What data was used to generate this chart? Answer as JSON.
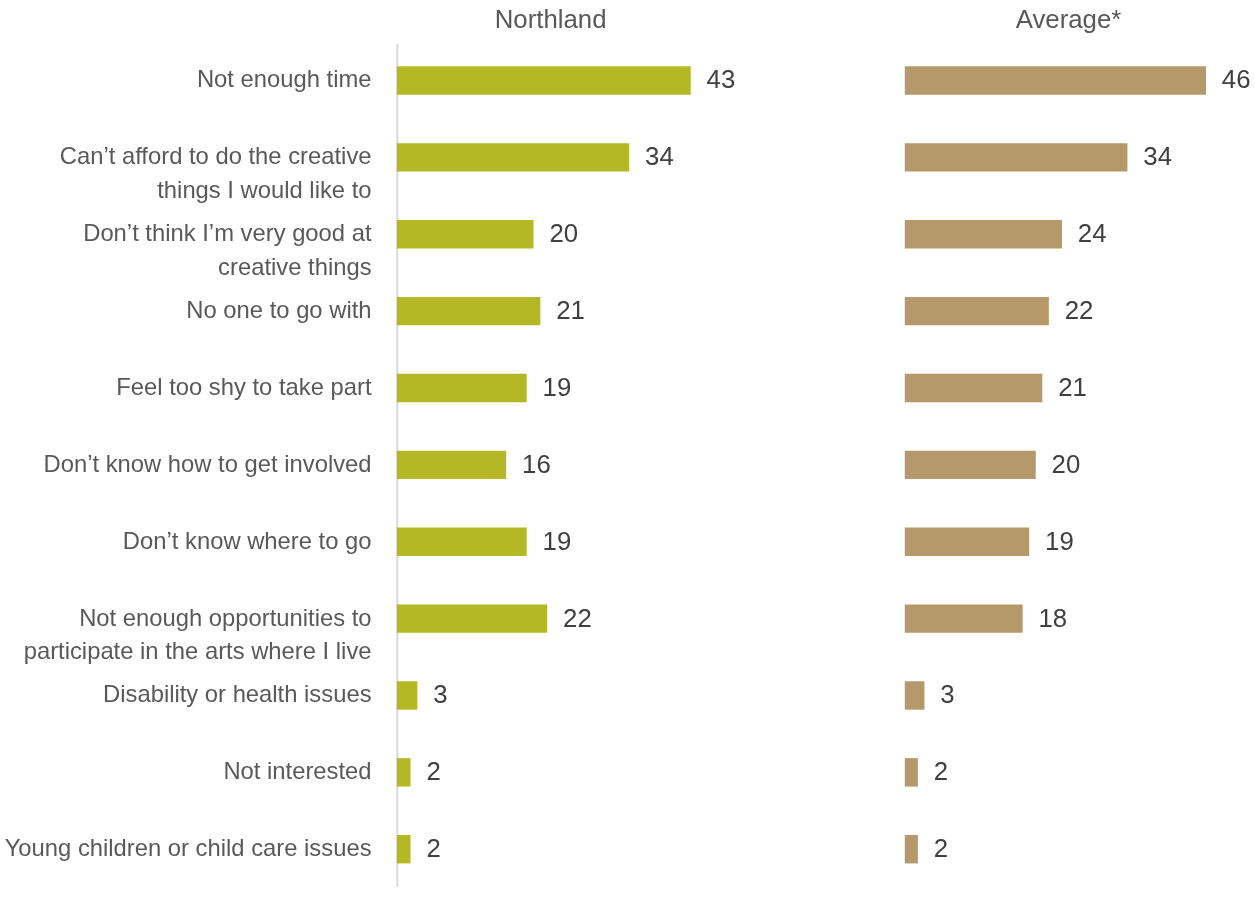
{
  "chart_data": [
    {
      "type": "bar",
      "orientation": "horizontal",
      "title": "Northland",
      "categories": [
        "Not enough time",
        "Can’t afford to do the creative things I would like to",
        "Don’t think I’m very good at creative things",
        "No one to go with",
        "Feel too shy to take part",
        "Don’t know how to get involved",
        "Don’t know where to go",
        "Not enough opportunities to participate in the arts where I live",
        "Disability or health issues",
        "Not interested",
        "Young children or child care issues"
      ],
      "series": [
        {
          "color": "#b3b824",
          "values": [
            43,
            34,
            20,
            21,
            19,
            16,
            19,
            22,
            3,
            2,
            2
          ]
        }
      ],
      "data_labels": true,
      "tick_labels": "y"
    },
    {
      "type": "bar",
      "orientation": "horizontal",
      "title": "Average*",
      "categories": [
        null,
        null,
        null,
        null,
        null,
        null,
        null,
        null,
        null,
        null,
        null
      ],
      "series": [
        {
          "color": "#b5996a",
          "values": [
            46,
            34,
            24,
            22,
            21,
            20,
            19,
            18,
            3,
            2,
            2
          ]
        }
      ],
      "data_labels": true,
      "tick_labels": false
    }
  ]
}
